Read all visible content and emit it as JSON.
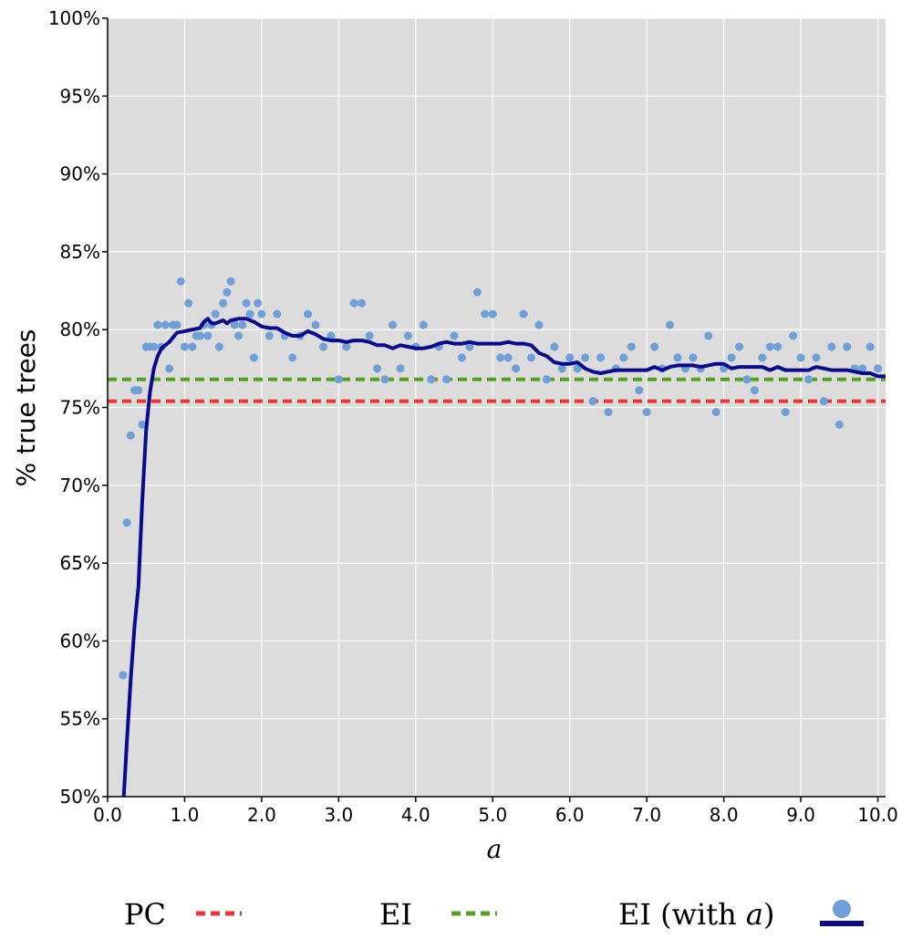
{
  "chart_data": {
    "type": "scatter",
    "xlabel": "a",
    "ylabel": "% true trees",
    "xlim": [
      0.0,
      10.1
    ],
    "ylim": [
      50,
      100
    ],
    "x_ticks": [
      "0.0",
      "1.0",
      "2.0",
      "3.0",
      "4.0",
      "5.0",
      "6.0",
      "7.0",
      "8.0",
      "9.0",
      "10.0"
    ],
    "y_ticks": [
      "50%",
      "55%",
      "60%",
      "65%",
      "70%",
      "75%",
      "80%",
      "85%",
      "90%",
      "95%",
      "100%"
    ],
    "grid": true,
    "legend_position": "bottom",
    "colors": {
      "background": "#dcdcdc",
      "grid": "#ffffff",
      "pc": "#ee3333",
      "ei": "#55a020",
      "scatter": "#6f9fd6",
      "ei_with_a_line": "#0a0a8c"
    },
    "legend": [
      {
        "label": "PC",
        "style": "dashed-line",
        "color": "#ee3333"
      },
      {
        "label": "EI",
        "style": "dashed-line",
        "color": "#55a020"
      },
      {
        "label_prefix": "EI (with ",
        "label_italic": "a",
        "label_suffix": ")",
        "style": "dot-and-line",
        "color": "#0a0a8c"
      }
    ],
    "hlines": [
      {
        "name": "PC",
        "y": 75.4,
        "color": "#ee3333"
      },
      {
        "name": "EI",
        "y": 76.8,
        "color": "#55a020"
      }
    ],
    "series": [
      {
        "name": "EI (with a)",
        "kind": "scatter",
        "color": "#6f9fd6",
        "points": [
          [
            0.2,
            57.8
          ],
          [
            0.25,
            67.6
          ],
          [
            0.3,
            73.2
          ],
          [
            0.35,
            76.1
          ],
          [
            0.4,
            76.1
          ],
          [
            0.45,
            73.9
          ],
          [
            0.5,
            78.9
          ],
          [
            0.55,
            78.9
          ],
          [
            0.6,
            78.9
          ],
          [
            0.65,
            80.3
          ],
          [
            0.7,
            78.9
          ],
          [
            0.75,
            80.3
          ],
          [
            0.8,
            77.5
          ],
          [
            0.85,
            80.3
          ],
          [
            0.9,
            80.3
          ],
          [
            0.95,
            83.1
          ],
          [
            1.0,
            78.9
          ],
          [
            1.05,
            81.7
          ],
          [
            1.1,
            78.9
          ],
          [
            1.15,
            79.6
          ],
          [
            1.2,
            79.6
          ],
          [
            1.25,
            80.3
          ],
          [
            1.3,
            79.6
          ],
          [
            1.35,
            80.3
          ],
          [
            1.4,
            81.0
          ],
          [
            1.45,
            78.9
          ],
          [
            1.5,
            81.7
          ],
          [
            1.55,
            82.4
          ],
          [
            1.6,
            83.1
          ],
          [
            1.65,
            80.3
          ],
          [
            1.7,
            79.6
          ],
          [
            1.75,
            80.3
          ],
          [
            1.8,
            81.7
          ],
          [
            1.85,
            81.0
          ],
          [
            1.9,
            78.2
          ],
          [
            1.95,
            81.7
          ],
          [
            2.0,
            81.0
          ],
          [
            2.1,
            79.6
          ],
          [
            2.2,
            81.0
          ],
          [
            2.3,
            79.6
          ],
          [
            2.4,
            78.2
          ],
          [
            2.5,
            79.6
          ],
          [
            2.6,
            81.0
          ],
          [
            2.7,
            80.3
          ],
          [
            2.8,
            78.9
          ],
          [
            2.9,
            79.6
          ],
          [
            3.0,
            76.8
          ],
          [
            3.1,
            78.9
          ],
          [
            3.2,
            81.7
          ],
          [
            3.3,
            81.7
          ],
          [
            3.4,
            79.6
          ],
          [
            3.5,
            77.5
          ],
          [
            3.6,
            76.8
          ],
          [
            3.7,
            80.3
          ],
          [
            3.8,
            77.5
          ],
          [
            3.9,
            79.6
          ],
          [
            4.0,
            78.9
          ],
          [
            4.1,
            80.3
          ],
          [
            4.2,
            76.8
          ],
          [
            4.3,
            78.9
          ],
          [
            4.4,
            76.8
          ],
          [
            4.5,
            79.6
          ],
          [
            4.6,
            78.2
          ],
          [
            4.7,
            78.9
          ],
          [
            4.8,
            82.4
          ],
          [
            4.9,
            81.0
          ],
          [
            5.0,
            81.0
          ],
          [
            5.1,
            78.2
          ],
          [
            5.2,
            78.2
          ],
          [
            5.3,
            77.5
          ],
          [
            5.4,
            81.0
          ],
          [
            5.5,
            78.2
          ],
          [
            5.6,
            80.3
          ],
          [
            5.7,
            76.8
          ],
          [
            5.8,
            78.9
          ],
          [
            5.9,
            77.5
          ],
          [
            6.0,
            78.2
          ],
          [
            6.1,
            77.5
          ],
          [
            6.2,
            78.2
          ],
          [
            6.3,
            75.4
          ],
          [
            6.4,
            78.2
          ],
          [
            6.5,
            74.7
          ],
          [
            6.6,
            77.5
          ],
          [
            6.7,
            78.2
          ],
          [
            6.8,
            78.9
          ],
          [
            6.9,
            76.1
          ],
          [
            7.0,
            74.7
          ],
          [
            7.1,
            78.9
          ],
          [
            7.2,
            77.5
          ],
          [
            7.3,
            80.3
          ],
          [
            7.4,
            78.2
          ],
          [
            7.5,
            77.5
          ],
          [
            7.6,
            78.2
          ],
          [
            7.7,
            77.5
          ],
          [
            7.8,
            79.6
          ],
          [
            7.9,
            74.7
          ],
          [
            8.0,
            77.5
          ],
          [
            8.1,
            78.2
          ],
          [
            8.2,
            78.9
          ],
          [
            8.3,
            76.8
          ],
          [
            8.4,
            76.1
          ],
          [
            8.5,
            78.2
          ],
          [
            8.6,
            78.9
          ],
          [
            8.7,
            78.9
          ],
          [
            8.8,
            74.7
          ],
          [
            8.9,
            79.6
          ],
          [
            9.0,
            78.2
          ],
          [
            9.1,
            76.8
          ],
          [
            9.2,
            78.2
          ],
          [
            9.3,
            75.4
          ],
          [
            9.4,
            78.9
          ],
          [
            9.5,
            73.9
          ],
          [
            9.6,
            78.9
          ],
          [
            9.7,
            77.5
          ],
          [
            9.8,
            77.5
          ],
          [
            9.9,
            78.9
          ],
          [
            10.0,
            77.5
          ]
        ]
      },
      {
        "name": "EI (with a) smoothed",
        "kind": "line",
        "color": "#0a0a8c",
        "points": [
          [
            0.21,
            50.0
          ],
          [
            0.25,
            53.5
          ],
          [
            0.3,
            57.5
          ],
          [
            0.35,
            61.0
          ],
          [
            0.4,
            63.5
          ],
          [
            0.45,
            69.0
          ],
          [
            0.5,
            73.5
          ],
          [
            0.55,
            76.0
          ],
          [
            0.6,
            77.5
          ],
          [
            0.65,
            78.3
          ],
          [
            0.7,
            78.8
          ],
          [
            0.8,
            79.2
          ],
          [
            0.9,
            79.8
          ],
          [
            1.0,
            79.9
          ],
          [
            1.1,
            80.0
          ],
          [
            1.2,
            80.1
          ],
          [
            1.25,
            80.5
          ],
          [
            1.3,
            80.7
          ],
          [
            1.35,
            80.4
          ],
          [
            1.4,
            80.4
          ],
          [
            1.5,
            80.6
          ],
          [
            1.55,
            80.4
          ],
          [
            1.6,
            80.6
          ],
          [
            1.7,
            80.7
          ],
          [
            1.8,
            80.7
          ],
          [
            1.9,
            80.5
          ],
          [
            2.0,
            80.2
          ],
          [
            2.1,
            80.1
          ],
          [
            2.2,
            80.1
          ],
          [
            2.3,
            79.8
          ],
          [
            2.4,
            79.6
          ],
          [
            2.5,
            79.6
          ],
          [
            2.6,
            79.9
          ],
          [
            2.7,
            79.7
          ],
          [
            2.8,
            79.4
          ],
          [
            2.9,
            79.3
          ],
          [
            3.0,
            79.3
          ],
          [
            3.1,
            79.2
          ],
          [
            3.2,
            79.3
          ],
          [
            3.3,
            79.3
          ],
          [
            3.4,
            79.2
          ],
          [
            3.5,
            79.0
          ],
          [
            3.6,
            79.0
          ],
          [
            3.7,
            78.8
          ],
          [
            3.8,
            79.0
          ],
          [
            3.9,
            78.9
          ],
          [
            4.0,
            78.8
          ],
          [
            4.1,
            78.8
          ],
          [
            4.2,
            78.9
          ],
          [
            4.3,
            79.1
          ],
          [
            4.4,
            79.2
          ],
          [
            4.5,
            79.1
          ],
          [
            4.6,
            79.1
          ],
          [
            4.7,
            79.2
          ],
          [
            4.8,
            79.1
          ],
          [
            4.9,
            79.1
          ],
          [
            5.0,
            79.1
          ],
          [
            5.1,
            79.1
          ],
          [
            5.2,
            79.2
          ],
          [
            5.3,
            79.1
          ],
          [
            5.4,
            79.1
          ],
          [
            5.5,
            79.0
          ],
          [
            5.6,
            78.5
          ],
          [
            5.7,
            78.3
          ],
          [
            5.8,
            77.9
          ],
          [
            5.9,
            77.8
          ],
          [
            6.0,
            77.8
          ],
          [
            6.1,
            77.9
          ],
          [
            6.2,
            77.5
          ],
          [
            6.3,
            77.3
          ],
          [
            6.4,
            77.2
          ],
          [
            6.5,
            77.3
          ],
          [
            6.6,
            77.4
          ],
          [
            6.7,
            77.4
          ],
          [
            6.8,
            77.4
          ],
          [
            6.9,
            77.4
          ],
          [
            7.0,
            77.4
          ],
          [
            7.1,
            77.6
          ],
          [
            7.2,
            77.4
          ],
          [
            7.3,
            77.6
          ],
          [
            7.4,
            77.7
          ],
          [
            7.5,
            77.7
          ],
          [
            7.6,
            77.7
          ],
          [
            7.7,
            77.6
          ],
          [
            7.8,
            77.7
          ],
          [
            7.9,
            77.8
          ],
          [
            8.0,
            77.8
          ],
          [
            8.1,
            77.5
          ],
          [
            8.2,
            77.6
          ],
          [
            8.3,
            77.6
          ],
          [
            8.4,
            77.6
          ],
          [
            8.5,
            77.6
          ],
          [
            8.6,
            77.4
          ],
          [
            8.7,
            77.6
          ],
          [
            8.8,
            77.4
          ],
          [
            8.9,
            77.4
          ],
          [
            9.0,
            77.4
          ],
          [
            9.1,
            77.4
          ],
          [
            9.2,
            77.6
          ],
          [
            9.3,
            77.5
          ],
          [
            9.4,
            77.4
          ],
          [
            9.5,
            77.4
          ],
          [
            9.6,
            77.4
          ],
          [
            9.7,
            77.3
          ],
          [
            9.8,
            77.2
          ],
          [
            9.9,
            77.2
          ],
          [
            10.0,
            77.0
          ],
          [
            10.1,
            77.0
          ]
        ]
      }
    ]
  }
}
